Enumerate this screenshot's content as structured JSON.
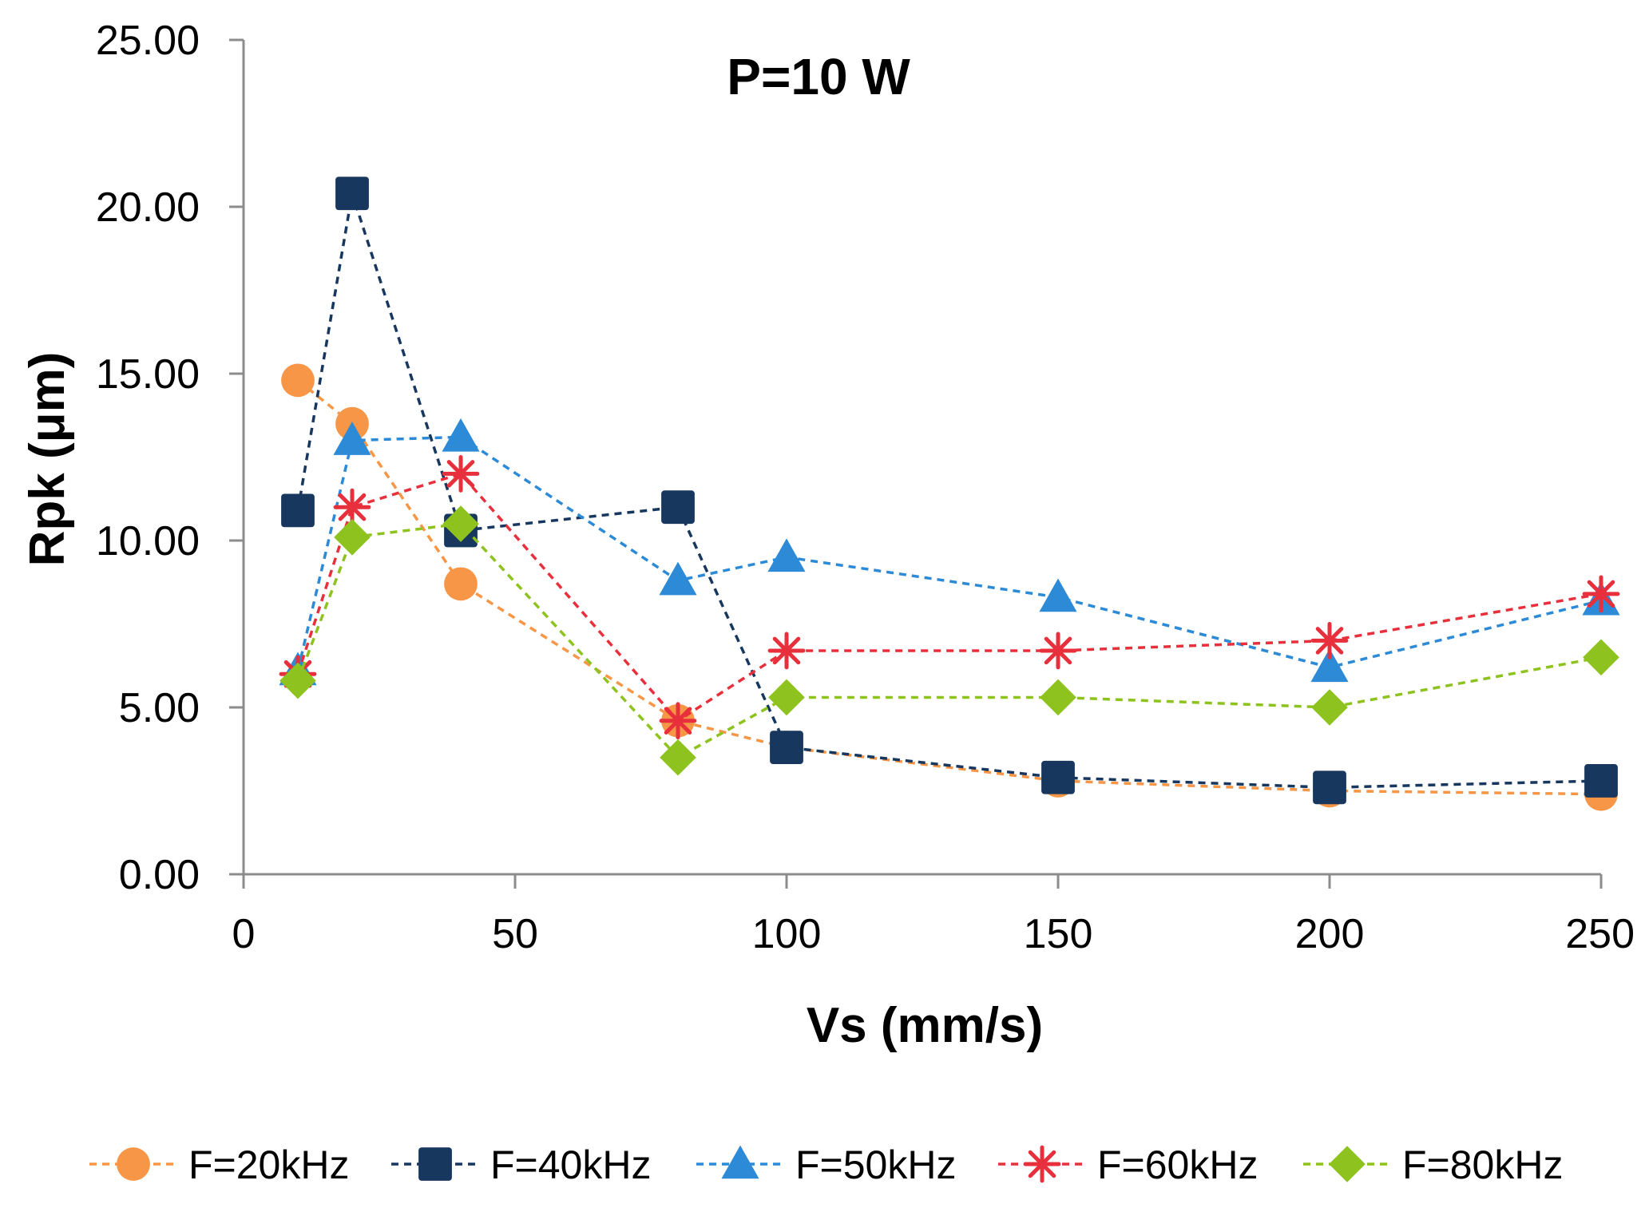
{
  "chart_data": {
    "type": "line",
    "title": "P=10 W",
    "xlabel": "Vs (mm/s)",
    "ylabel": "Rpk (μm)",
    "xlim": [
      0,
      250
    ],
    "ylim": [
      0,
      25
    ],
    "xticks": [
      0,
      50,
      100,
      150,
      200,
      250
    ],
    "xtick_labels": [
      "0",
      "50",
      "100",
      "150",
      "200",
      "250"
    ],
    "yticks": [
      0,
      5,
      10,
      15,
      20,
      25
    ],
    "ytick_labels": [
      "0.00",
      "5.00",
      "10.00",
      "15.00",
      "20.00",
      "25.00"
    ],
    "grid": false,
    "legend_position": "bottom",
    "x": [
      10,
      20,
      40,
      80,
      100,
      150,
      200,
      250
    ],
    "series": [
      {
        "name": "F=20kHz",
        "values": [
          14.8,
          13.5,
          8.7,
          4.6,
          3.8,
          2.8,
          2.5,
          2.4
        ],
        "color": "#f79646",
        "marker": "circle"
      },
      {
        "name": "F=40kHz",
        "values": [
          10.9,
          20.4,
          10.3,
          11.0,
          3.8,
          2.9,
          2.6,
          2.8
        ],
        "color": "#17375e",
        "marker": "square"
      },
      {
        "name": "F=50kHz",
        "values": [
          6.1,
          13.0,
          13.1,
          8.8,
          9.5,
          8.3,
          6.2,
          8.2
        ],
        "color": "#2c8ad6",
        "marker": "triangle"
      },
      {
        "name": "F=60kHz",
        "values": [
          6.0,
          11.0,
          12.0,
          4.6,
          6.7,
          6.7,
          7.0,
          8.4
        ],
        "color": "#e8303c",
        "marker": "star"
      },
      {
        "name": "F=80kHz",
        "values": [
          5.8,
          10.1,
          10.5,
          3.5,
          5.3,
          5.3,
          5.0,
          6.5
        ],
        "color": "#8dc21f",
        "marker": "diamond"
      }
    ]
  }
}
